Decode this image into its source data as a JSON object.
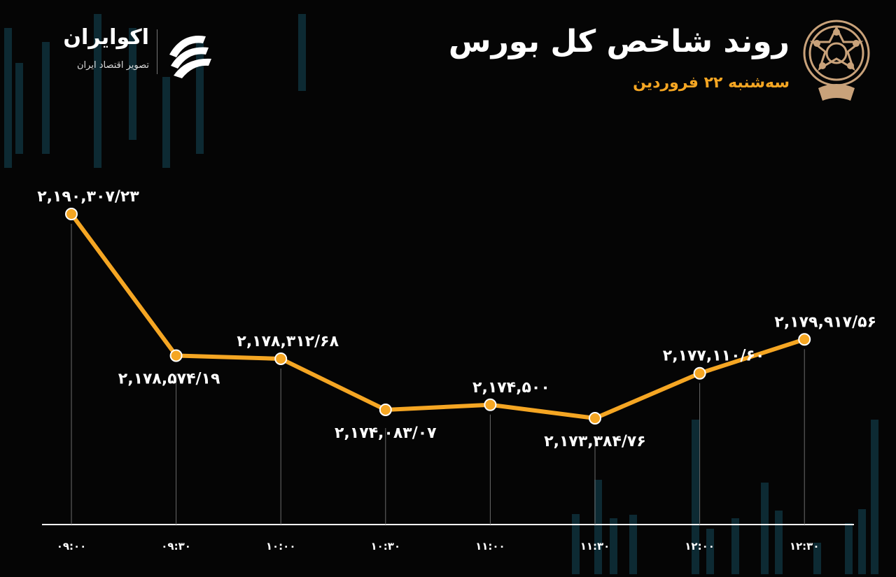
{
  "header": {
    "title": "روند شاخص کل بورس",
    "subtitle": "سه‌شنبه ۲۲ فروردین"
  },
  "logo": {
    "name": "اکوایران",
    "tagline": "تصویر اقتصاد ایران",
    "icon": "ekoiran-logo-icon"
  },
  "emblem": {
    "icon": "tehran-stock-exchange-emblem"
  },
  "colors": {
    "background": "#050505",
    "line": "#f5a623",
    "marker_fill": "#f5a623",
    "marker_stroke": "#ffffff",
    "label": "#ffffff",
    "axis": "#ffffff",
    "guide": "#6b6b6b",
    "subtitle": "#f5a623",
    "decor_bars": "#0d2a33"
  },
  "chart_data": {
    "type": "line",
    "title": "",
    "xlabel": "",
    "ylabel": "",
    "categories": [
      "۰۹:۰۰",
      "۰۹:۳۰",
      "۱۰:۰۰",
      "۱۰:۳۰",
      "۱۱:۰۰",
      "۱۱:۳۰",
      "۱۲:۰۰",
      "۱۲:۳۰"
    ],
    "series": [
      {
        "values": [
          2190307.23,
          2178574.19,
          2178312.68,
          2174083.07,
          2174500,
          2173384.76,
          2177110.6,
          2179917.56
        ]
      }
    ],
    "data_labels": [
      "۲,۱۹۰,۳۰۷/۲۳",
      "۲,۱۷۸,۵۷۴/۱۹",
      "۲,۱۷۸,۳۱۲/۶۸",
      "۲,۱۷۴,۰۸۳/۰۷",
      "۲,۱۷۴,۵۰۰",
      "۲,۱۷۳,۳۸۴/۷۶",
      "۲,۱۷۷,۱۱۰/۶۰",
      "۲,۱۷۹,۹۱۷/۵۶"
    ],
    "label_position": [
      "above",
      "below",
      "above",
      "below",
      "above",
      "below",
      "above",
      "above"
    ],
    "ylim": [
      2160000,
      2195000
    ],
    "grid": false,
    "legend": "none"
  }
}
